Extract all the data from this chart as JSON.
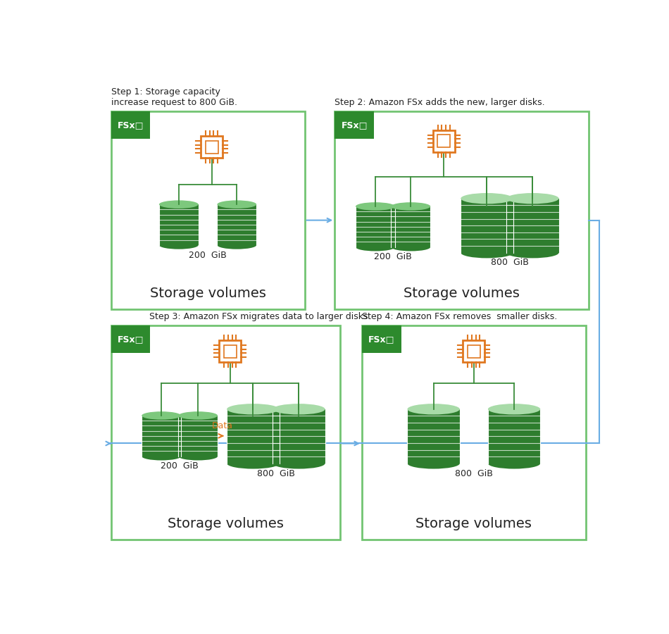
{
  "bg_color": "#ffffff",
  "green_dark": "#2e7d2e",
  "green_mid": "#3a8c3a",
  "green_top": "#7dc87d",
  "green_lighter_top": "#a8dba8",
  "green_border": "#72c472",
  "orange": "#e07820",
  "blue_arrow": "#6aade4",
  "text_dark": "#222222",
  "fsx_bg": "#2d8a2d",
  "step_titles": [
    "Step 1: Storage capacity\nincrease request to 800 GiB.",
    "Step 2: Amazon FSx adds the new, larger disks.",
    "Step 3: Amazon FSx migrates data to larger disks.",
    "Step 4: Amazon FSx removes  smaller disks."
  ]
}
